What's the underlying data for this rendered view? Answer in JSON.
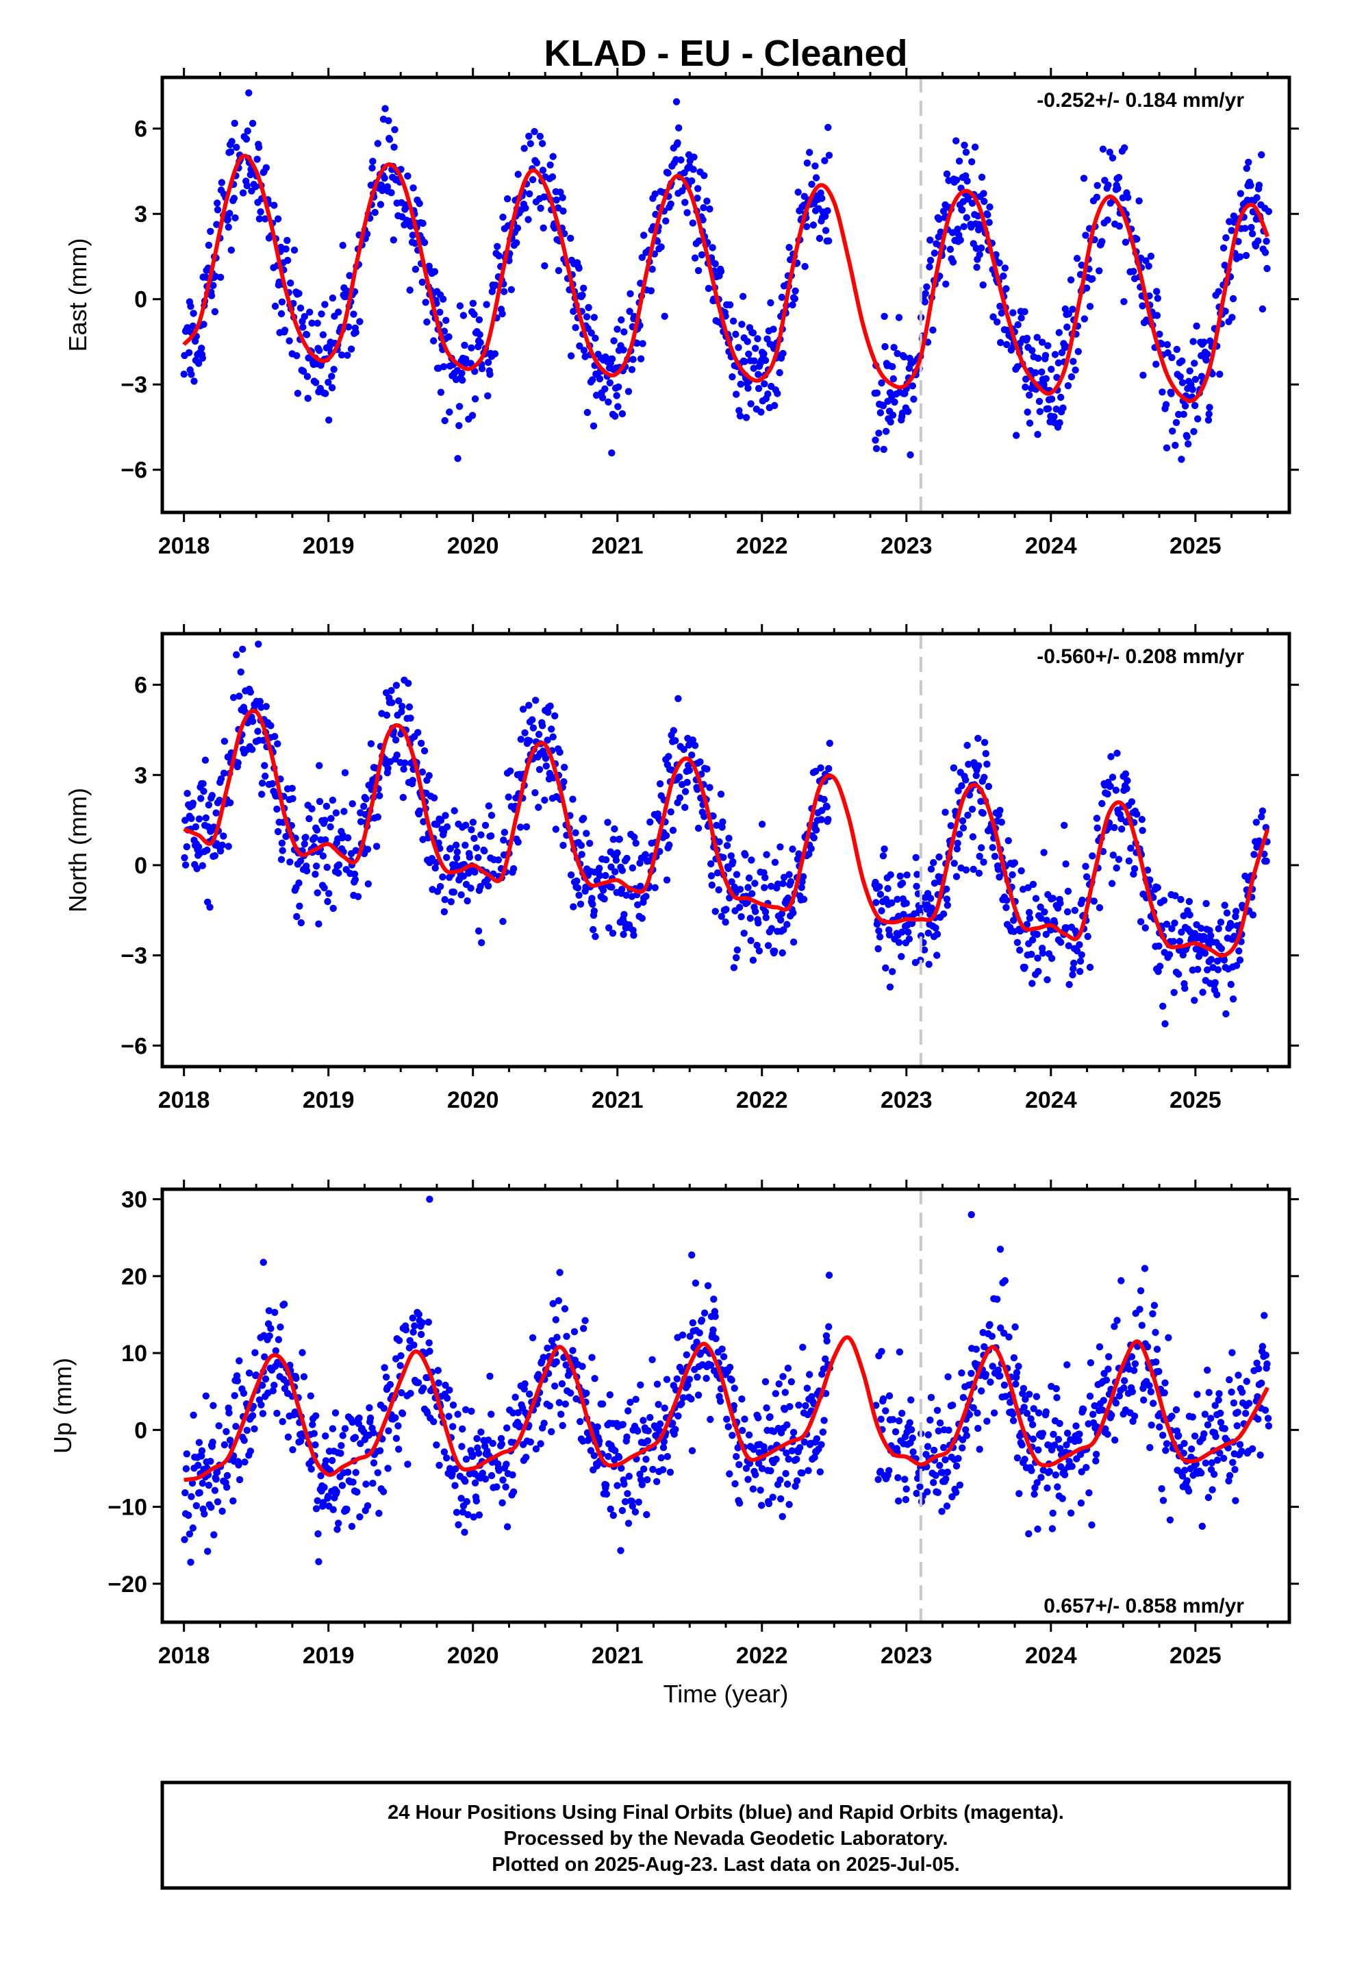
{
  "figure": {
    "title": "KLAD  - EU - Cleaned",
    "xlabel": "Time (year)",
    "footer_lines": [
      "24 Hour Positions Using Final Orbits (blue) and Rapid Orbits (magenta).",
      "Processed by the Nevada Geodetic Laboratory.",
      "Plotted on 2025-Aug-23. Last data on 2025-Jul-05."
    ]
  },
  "chart_data": [
    {
      "type": "scatter",
      "ylabel": "East (mm)",
      "rate_label": "-0.252+/- 0.184 mm/yr",
      "rate_position": "top-right",
      "xlim": [
        2017.85,
        2025.65
      ],
      "ylim": [
        -7.5,
        7.8
      ],
      "xticks": [
        2018,
        2019,
        2020,
        2021,
        2022,
        2023,
        2024,
        2025
      ],
      "yticks": [
        6,
        3,
        0,
        -3,
        -6
      ],
      "ytick_labels": [
        "6",
        "3",
        "0",
        "−3",
        "−6"
      ],
      "equipment_change_year": 2023.1,
      "grid": false,
      "colors": {
        "points": "#0000ff",
        "fit": "#ff0000",
        "marker_line": "#c8c8c8"
      },
      "series": [
        {
          "kind": "model_fit",
          "x": [
            2018.0,
            2018.1,
            2018.2,
            2018.3,
            2018.4,
            2018.5,
            2018.6,
            2018.7,
            2018.8,
            2018.9,
            2019.0,
            2019.1,
            2019.2,
            2019.3,
            2019.4,
            2019.5,
            2019.6,
            2019.7,
            2019.8,
            2019.9,
            2020.0,
            2020.1,
            2020.2,
            2020.3,
            2020.4,
            2020.5,
            2020.6,
            2020.7,
            2020.8,
            2020.9,
            2021.0,
            2021.1,
            2021.2,
            2021.3,
            2021.4,
            2021.5,
            2021.6,
            2021.7,
            2021.8,
            2021.9,
            2022.0,
            2022.1,
            2022.2,
            2022.3,
            2022.4,
            2022.5,
            2022.6,
            2022.7,
            2022.8,
            2022.9,
            2023.0,
            2023.1,
            2023.2,
            2023.3,
            2023.4,
            2023.5,
            2023.6,
            2023.7,
            2023.8,
            2023.9,
            2024.0,
            2024.1,
            2024.2,
            2024.3,
            2024.4,
            2024.5,
            2024.6,
            2024.7,
            2024.8,
            2024.9,
            2025.0,
            2025.1,
            2025.2,
            2025.3,
            2025.4,
            2025.5
          ],
          "y": [
            -1.6,
            -0.9,
            1.2,
            3.6,
            5.0,
            4.5,
            2.7,
            0.4,
            -1.2,
            -2.0,
            -2.1,
            -1.1,
            1.4,
            3.6,
            4.7,
            4.3,
            2.6,
            0.3,
            -1.6,
            -2.3,
            -2.4,
            -1.6,
            0.8,
            3.2,
            4.5,
            4.0,
            2.4,
            0.2,
            -1.6,
            -2.5,
            -2.6,
            -1.6,
            0.9,
            3.1,
            4.3,
            3.8,
            2.0,
            -0.2,
            -1.9,
            -2.7,
            -2.8,
            -1.9,
            0.8,
            3.0,
            4.0,
            3.4,
            1.4,
            -0.9,
            -2.4,
            -3.0,
            -3.0,
            -2.0,
            0.7,
            3.0,
            3.8,
            3.3,
            1.4,
            -0.6,
            -2.2,
            -3.0,
            -3.3,
            -2.4,
            0.0,
            2.6,
            3.6,
            3.0,
            1.3,
            -0.9,
            -2.6,
            -3.4,
            -3.5,
            -2.4,
            0.2,
            2.7,
            3.3,
            2.2
          ]
        }
      ]
    },
    {
      "type": "scatter",
      "ylabel": "North (mm)",
      "rate_label": "-0.560+/- 0.208 mm/yr",
      "rate_position": "top-right",
      "xlim": [
        2017.85,
        2025.65
      ],
      "ylim": [
        -6.7,
        7.7
      ],
      "xticks": [
        2018,
        2019,
        2020,
        2021,
        2022,
        2023,
        2024,
        2025
      ],
      "yticks": [
        6,
        3,
        0,
        -3,
        -6
      ],
      "ytick_labels": [
        "6",
        "3",
        "0",
        "−3",
        "−6"
      ],
      "equipment_change_year": 2023.1,
      "grid": false,
      "colors": {
        "points": "#0000ff",
        "fit": "#ff0000",
        "marker_line": "#c8c8c8"
      },
      "series": [
        {
          "kind": "model_fit",
          "x": [
            2018.0,
            2018.1,
            2018.2,
            2018.3,
            2018.4,
            2018.5,
            2018.6,
            2018.7,
            2018.8,
            2018.9,
            2019.0,
            2019.1,
            2019.2,
            2019.3,
            2019.4,
            2019.5,
            2019.6,
            2019.7,
            2019.8,
            2019.9,
            2020.0,
            2020.1,
            2020.2,
            2020.3,
            2020.4,
            2020.5,
            2020.6,
            2020.7,
            2020.8,
            2020.9,
            2021.0,
            2021.1,
            2021.2,
            2021.3,
            2021.4,
            2021.5,
            2021.6,
            2021.7,
            2021.8,
            2021.9,
            2022.0,
            2022.1,
            2022.2,
            2022.3,
            2022.4,
            2022.5,
            2022.6,
            2022.7,
            2022.8,
            2022.9,
            2023.0,
            2023.1,
            2023.2,
            2023.3,
            2023.4,
            2023.5,
            2023.6,
            2023.7,
            2023.8,
            2023.9,
            2024.0,
            2024.1,
            2024.2,
            2024.3,
            2024.4,
            2024.5,
            2024.6,
            2024.7,
            2024.8,
            2024.9,
            2025.0,
            2025.1,
            2025.2,
            2025.3,
            2025.4,
            2025.5
          ],
          "y": [
            1.2,
            1.0,
            0.8,
            2.6,
            4.6,
            5.1,
            3.8,
            1.6,
            0.4,
            0.5,
            0.7,
            0.3,
            0.2,
            2.0,
            4.2,
            4.6,
            3.4,
            1.2,
            -0.1,
            -0.2,
            0.0,
            -0.3,
            -0.4,
            1.6,
            3.6,
            4.0,
            2.6,
            0.5,
            -0.6,
            -0.6,
            -0.5,
            -0.8,
            -0.7,
            1.2,
            3.1,
            3.5,
            2.3,
            0.2,
            -1.0,
            -1.1,
            -1.3,
            -1.4,
            -1.3,
            0.6,
            2.6,
            2.9,
            1.6,
            -0.5,
            -1.7,
            -1.9,
            -1.8,
            -1.8,
            -1.6,
            0.4,
            2.3,
            2.6,
            1.4,
            -0.6,
            -2.0,
            -2.1,
            -2.0,
            -2.3,
            -2.3,
            -0.3,
            1.7,
            2.0,
            0.6,
            -1.4,
            -2.6,
            -2.7,
            -2.6,
            -2.8,
            -3.0,
            -2.4,
            -0.4,
            1.2
          ]
        }
      ]
    },
    {
      "type": "scatter",
      "ylabel": "Up (mm)",
      "xlabel": "Time (year)",
      "rate_label": "0.657+/- 0.858 mm/yr",
      "rate_position": "bottom-right",
      "xlim": [
        2017.85,
        2025.65
      ],
      "ylim": [
        -25,
        31.3
      ],
      "xticks": [
        2018,
        2019,
        2020,
        2021,
        2022,
        2023,
        2024,
        2025
      ],
      "yticks": [
        30,
        20,
        10,
        0,
        -10,
        -20
      ],
      "ytick_labels": [
        "30",
        "20",
        "10",
        "0",
        "−10",
        "−20"
      ],
      "equipment_change_year": 2023.1,
      "grid": false,
      "colors": {
        "points": "#0000ff",
        "fit": "#ff0000",
        "marker_line": "#c8c8c8"
      },
      "series": [
        {
          "kind": "model_fit",
          "x": [
            2018.0,
            2018.1,
            2018.2,
            2018.3,
            2018.4,
            2018.5,
            2018.6,
            2018.7,
            2018.8,
            2018.9,
            2019.0,
            2019.1,
            2019.2,
            2019.3,
            2019.4,
            2019.5,
            2019.6,
            2019.7,
            2019.8,
            2019.9,
            2020.0,
            2020.1,
            2020.2,
            2020.3,
            2020.4,
            2020.5,
            2020.6,
            2020.7,
            2020.8,
            2020.9,
            2021.0,
            2021.1,
            2021.2,
            2021.3,
            2021.4,
            2021.5,
            2021.6,
            2021.7,
            2021.8,
            2021.9,
            2022.0,
            2022.1,
            2022.2,
            2022.3,
            2022.4,
            2022.5,
            2022.6,
            2022.7,
            2022.8,
            2022.9,
            2023.0,
            2023.1,
            2023.2,
            2023.3,
            2023.4,
            2023.5,
            2023.6,
            2023.7,
            2023.8,
            2023.9,
            2024.0,
            2024.1,
            2024.2,
            2024.3,
            2024.4,
            2024.5,
            2024.6,
            2024.7,
            2024.8,
            2024.9,
            2025.0,
            2025.1,
            2025.2,
            2025.3,
            2025.4,
            2025.5
          ],
          "y": [
            -6.5,
            -6.2,
            -5.0,
            -3.8,
            0.5,
            5.5,
            9.5,
            8.5,
            2.5,
            -3.5,
            -5.8,
            -4.8,
            -3.8,
            -2.8,
            1.5,
            6.5,
            10.2,
            7.5,
            1.0,
            -4.5,
            -5.0,
            -4.0,
            -3.0,
            -2.0,
            2.5,
            7.5,
            10.8,
            7.5,
            1.0,
            -4.0,
            -4.5,
            -3.5,
            -2.5,
            -1.0,
            3.5,
            8.5,
            11.2,
            8.0,
            1.5,
            -3.5,
            -3.5,
            -2.5,
            -1.5,
            -0.5,
            4.0,
            9.5,
            12.0,
            7.5,
            0.5,
            -3.0,
            -3.5,
            -4.5,
            -3.5,
            -2.5,
            2.0,
            7.5,
            10.8,
            7.0,
            0.5,
            -4.0,
            -4.5,
            -3.5,
            -2.5,
            -1.5,
            3.0,
            8.5,
            11.5,
            7.5,
            1.0,
            -3.5,
            -4.0,
            -3.0,
            -2.0,
            -1.0,
            2.0,
            5.5
          ]
        },
        {
          "kind": "outlier_points",
          "x": [
            2019.7,
            2023.45,
            2023.65,
            2018.55,
            2024.65
          ],
          "y": [
            30.0,
            28.0,
            23.5,
            21.8,
            21.0
          ]
        }
      ]
    }
  ]
}
